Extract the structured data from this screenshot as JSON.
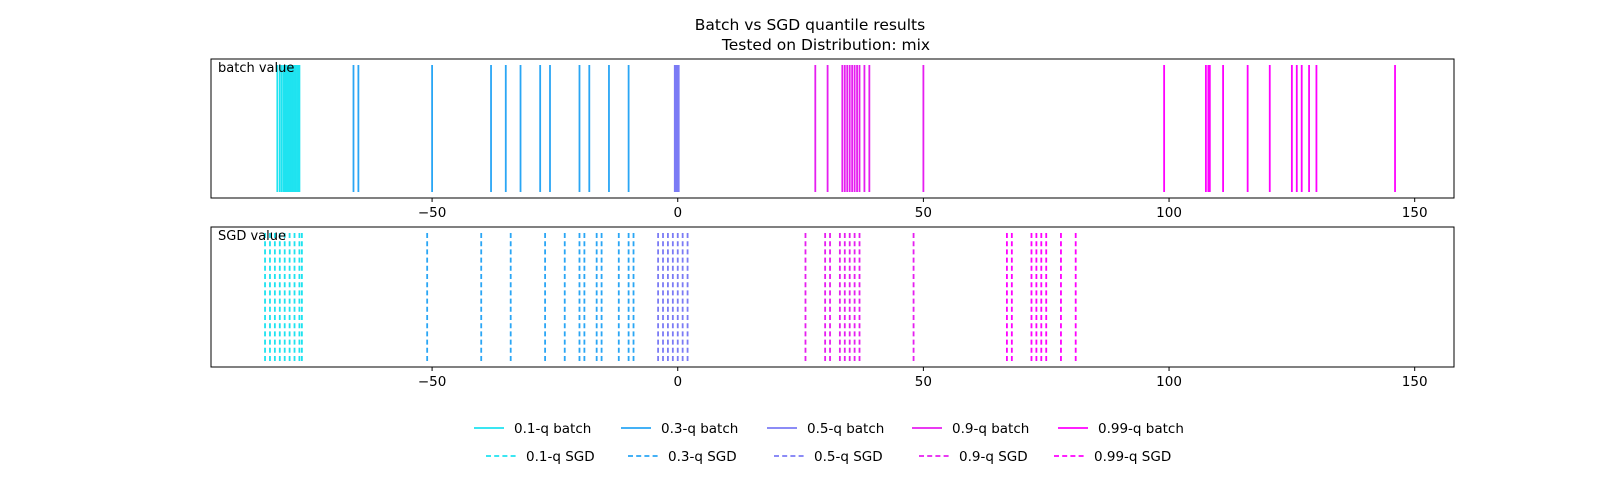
{
  "figure": {
    "title_line1": "Batch vs SGD quantile results",
    "title_line2": "Tested on Distribution: mix"
  },
  "colors": {
    "q01": "#1ee3f0",
    "q03": "#2aa6f5",
    "q05": "#7b7bf5",
    "q09": "#e61ef0",
    "q099": "#ff00ff"
  },
  "chart_data": [
    {
      "type": "event-lines",
      "title": "Batch vs SGD quantile results\nTested on Distribution: mix",
      "panel_label": "batch value",
      "linestyle": "solid",
      "xlim": [
        -95,
        158
      ],
      "xticks": [
        -50,
        0,
        50,
        100,
        150
      ],
      "series": [
        {
          "name": "0.1-q batch",
          "color_key": "q01",
          "values": [
            -81.5,
            -81.0,
            -80.6,
            -80.2,
            -79.9,
            -79.6,
            -79.3,
            -79.0,
            -78.7,
            -78.4,
            -78.1,
            -77.8,
            -77.5,
            -77.2,
            -77.0
          ]
        },
        {
          "name": "0.3-q batch",
          "color_key": "q03",
          "values": [
            -66,
            -65,
            -50,
            -38,
            -35,
            -32,
            -28,
            -26,
            -20,
            -18,
            -14,
            -10
          ]
        },
        {
          "name": "0.5-q batch",
          "color_key": "q05",
          "values": [
            -0.6,
            -0.4,
            -0.2,
            0.0,
            0.2
          ]
        },
        {
          "name": "0.9-q batch",
          "color_key": "q09",
          "values": [
            28,
            30.5,
            33.5,
            34,
            34.5,
            35,
            35.5,
            36,
            36.5,
            37,
            38,
            39,
            50
          ]
        },
        {
          "name": "0.99-q batch",
          "color_key": "q099",
          "values": [
            99,
            107.5,
            108,
            108.3,
            111,
            116,
            120.5,
            125,
            126,
            127,
            128.5,
            130,
            146
          ]
        }
      ]
    },
    {
      "type": "event-lines",
      "panel_label": "SGD value",
      "linestyle": "dashed",
      "xlim": [
        -95,
        158
      ],
      "xticks": [
        -50,
        0,
        50,
        100,
        150
      ],
      "series": [
        {
          "name": "0.1-q SGD",
          "color_key": "q01",
          "values": [
            -84,
            -83,
            -82,
            -81,
            -80,
            -79,
            -78,
            -77,
            -76.5
          ]
        },
        {
          "name": "0.3-q SGD",
          "color_key": "q03",
          "values": [
            -51,
            -40,
            -34,
            -27,
            -23,
            -20,
            -19,
            -16.5,
            -15.5,
            -12,
            -10,
            -9
          ]
        },
        {
          "name": "0.5-q SGD",
          "color_key": "q05",
          "values": [
            -4,
            -3,
            -2,
            -1,
            0,
            1,
            2
          ]
        },
        {
          "name": "0.9-q SGD",
          "color_key": "q09",
          "values": [
            26,
            30,
            31,
            33,
            34,
            35,
            36,
            37,
            48
          ]
        },
        {
          "name": "0.99-q SGD",
          "color_key": "q099",
          "values": [
            67,
            68,
            72,
            73,
            74,
            75,
            78,
            81
          ]
        }
      ]
    }
  ],
  "legend": {
    "row1": [
      "0.1-q batch",
      "0.3-q batch",
      "0.5-q batch",
      "0.9-q batch",
      "0.99-q batch"
    ],
    "row2": [
      "0.1-q SGD",
      "0.3-q SGD",
      "0.5-q SGD",
      "0.9-q SGD",
      "0.99-q SGD"
    ],
    "color_keys": [
      "q01",
      "q03",
      "q05",
      "q09",
      "q099"
    ]
  }
}
